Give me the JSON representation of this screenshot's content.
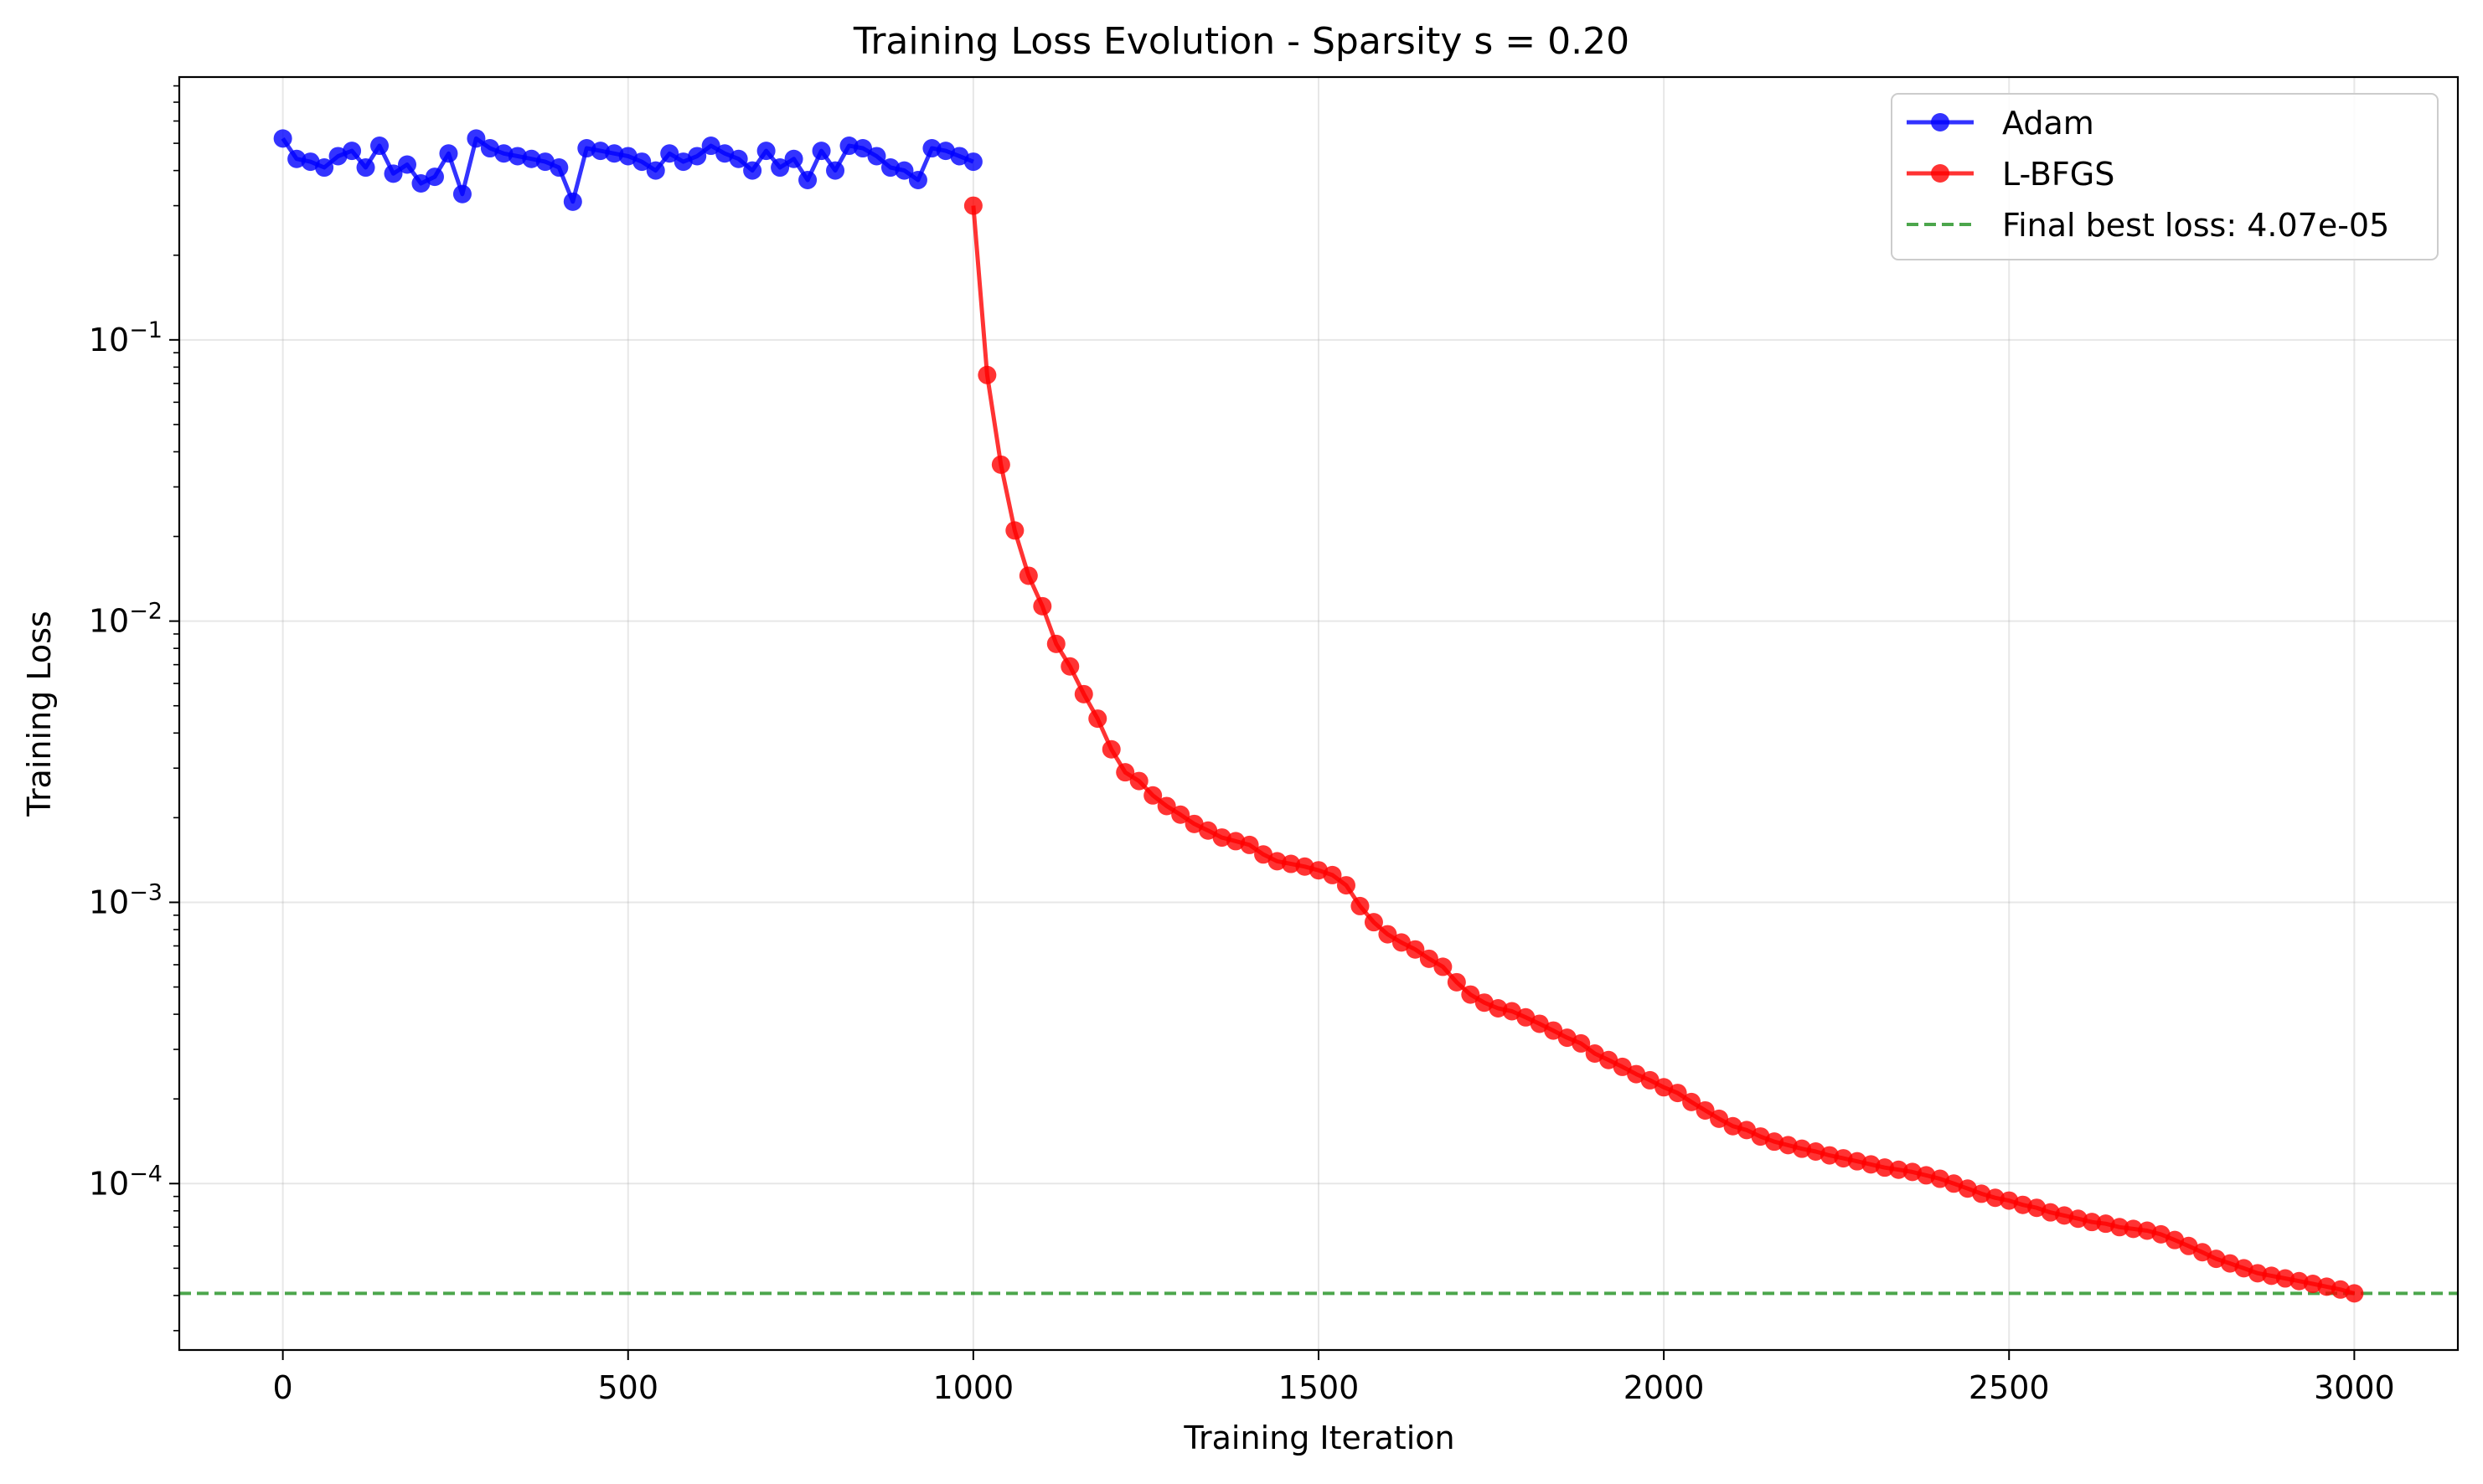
{
  "chart_data": {
    "type": "line",
    "title": "Training Loss Evolution - Sparsity s = 0.20",
    "xlabel": "Training Iteration",
    "ylabel": "Training Loss",
    "xscale": "linear",
    "yscale": "log",
    "xlim": [
      -150,
      3150
    ],
    "ylim": [
      2.56e-05,
      0.86
    ],
    "xticks": [
      0,
      500,
      1000,
      1500,
      2000,
      2500,
      3000
    ],
    "xtick_labels": [
      "0",
      "500",
      "1000",
      "1500",
      "2000",
      "2500",
      "3000"
    ],
    "yticks": [
      0.1,
      0.01,
      0.001,
      0.0001
    ],
    "ytick_labels": [
      {
        "base": "10",
        "exp": "−1"
      },
      {
        "base": "10",
        "exp": "−2"
      },
      {
        "base": "10",
        "exp": "−3"
      },
      {
        "base": "10",
        "exp": "−4"
      }
    ],
    "grid": true,
    "legend_position": "top-right",
    "legend": [
      "Adam",
      "L-BFGS",
      "Final best loss: 4.07e-05"
    ],
    "series": [
      {
        "name": "Adam",
        "color": "#0000ff",
        "marker": "circle",
        "x": [
          0,
          20,
          40,
          60,
          80,
          100,
          120,
          140,
          160,
          180,
          200,
          220,
          240,
          260,
          280,
          300,
          320,
          340,
          360,
          380,
          400,
          420,
          440,
          460,
          480,
          500,
          520,
          540,
          560,
          580,
          600,
          620,
          640,
          660,
          680,
          700,
          720,
          740,
          760,
          780,
          800,
          820,
          840,
          860,
          880,
          900,
          920,
          940,
          960,
          980,
          1000
        ],
        "y": [
          0.52,
          0.44,
          0.43,
          0.41,
          0.45,
          0.47,
          0.41,
          0.49,
          0.39,
          0.42,
          0.36,
          0.38,
          0.46,
          0.33,
          0.52,
          0.48,
          0.46,
          0.45,
          0.44,
          0.43,
          0.41,
          0.31,
          0.48,
          0.47,
          0.46,
          0.45,
          0.43,
          0.4,
          0.46,
          0.43,
          0.45,
          0.49,
          0.46,
          0.44,
          0.4,
          0.47,
          0.41,
          0.44,
          0.37,
          0.47,
          0.4,
          0.49,
          0.48,
          0.45,
          0.41,
          0.4,
          0.37,
          0.48,
          0.47,
          0.45,
          0.43
        ]
      },
      {
        "name": "L-BFGS",
        "color": "#ff0000",
        "marker": "circle",
        "x": [
          1000,
          1020,
          1040,
          1060,
          1080,
          1100,
          1120,
          1140,
          1160,
          1180,
          1200,
          1220,
          1240,
          1260,
          1280,
          1300,
          1320,
          1340,
          1360,
          1380,
          1400,
          1420,
          1440,
          1460,
          1480,
          1500,
          1520,
          1540,
          1560,
          1580,
          1600,
          1620,
          1640,
          1660,
          1680,
          1700,
          1720,
          1740,
          1760,
          1780,
          1800,
          1820,
          1840,
          1860,
          1880,
          1900,
          1920,
          1940,
          1960,
          1980,
          2000,
          2020,
          2040,
          2060,
          2080,
          2100,
          2120,
          2140,
          2160,
          2180,
          2200,
          2220,
          2240,
          2260,
          2280,
          2300,
          2320,
          2340,
          2360,
          2380,
          2400,
          2420,
          2440,
          2460,
          2480,
          2500,
          2520,
          2540,
          2560,
          2580,
          2600,
          2620,
          2640,
          2660,
          2680,
          2700,
          2720,
          2740,
          2760,
          2780,
          2800,
          2820,
          2840,
          2860,
          2880,
          2900,
          2920,
          2940,
          2960,
          2980,
          3000
        ],
        "y": [
          0.3,
          0.075,
          0.036,
          0.021,
          0.0145,
          0.0113,
          0.0083,
          0.0069,
          0.0055,
          0.0045,
          0.0035,
          0.0029,
          0.0027,
          0.0024,
          0.0022,
          0.00205,
          0.0019,
          0.0018,
          0.0017,
          0.00165,
          0.0016,
          0.00148,
          0.0014,
          0.00137,
          0.00134,
          0.0013,
          0.00125,
          0.00115,
          0.00097,
          0.00085,
          0.00077,
          0.00072,
          0.00068,
          0.00063,
          0.00059,
          0.00052,
          0.00047,
          0.00044,
          0.00042,
          0.00041,
          0.00039,
          0.00037,
          0.00035,
          0.00033,
          0.000315,
          0.00029,
          0.000275,
          0.00026,
          0.000245,
          0.000233,
          0.00022,
          0.00021,
          0.000195,
          0.000182,
          0.00017,
          0.00016,
          0.000155,
          0.000147,
          0.000141,
          0.000137,
          0.000133,
          0.00013,
          0.000126,
          0.000123,
          0.00012,
          0.000117,
          0.000114,
          0.000112,
          0.00011,
          0.000107,
          0.000104,
          0.0001,
          9.6e-05,
          9.2e-05,
          8.9e-05,
          8.7e-05,
          8.4e-05,
          8.2e-05,
          7.9e-05,
          7.7e-05,
          7.5e-05,
          7.3e-05,
          7.2e-05,
          7e-05,
          6.9e-05,
          6.8e-05,
          6.6e-05,
          6.3e-05,
          6e-05,
          5.7e-05,
          5.4e-05,
          5.2e-05,
          5e-05,
          4.8e-05,
          4.7e-05,
          4.6e-05,
          4.5e-05,
          4.4e-05,
          4.3e-05,
          4.2e-05,
          4.07e-05
        ]
      }
    ],
    "reference_line": {
      "name": "Final best loss: 4.07e-05",
      "y": 4.07e-05,
      "color": "#008000",
      "style": "dashed"
    }
  }
}
